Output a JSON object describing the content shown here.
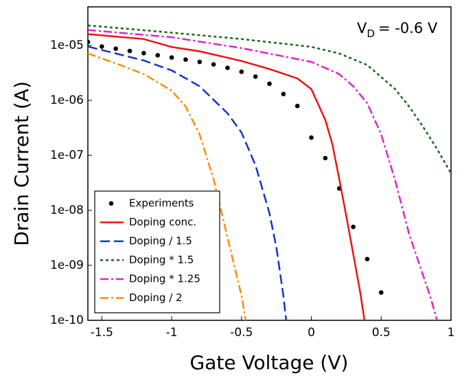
{
  "chart_data": {
    "type": "line",
    "xlabel": "Gate Voltage (V)",
    "ylabel": "Drain Current (A)",
    "annotation": {
      "text": "V",
      "subscript": "D",
      "suffix": "= -0.6 V"
    },
    "xlim": [
      -1.6,
      1.0
    ],
    "xticks": [
      -1.5,
      -1,
      -0.5,
      0,
      0.5,
      1
    ],
    "ylim": [
      1e-10,
      5e-05
    ],
    "yscale": "log",
    "yticks": [
      1e-10,
      {
        "value": 1e-09,
        "label": "1e-09"
      },
      {
        "value": 1e-08,
        "label": "1e-08"
      },
      {
        "value": 1e-07,
        "label": "1e-07"
      },
      {
        "value": 1e-06,
        "label": "1e-06"
      },
      {
        "value": 1e-05,
        "label": "1e-05"
      }
    ],
    "legend": "lower left",
    "series": [
      {
        "name": "Experiments",
        "color": "#000000",
        "style": "dots",
        "x": [
          -1.6,
          -1.5,
          -1.4,
          -1.3,
          -1.2,
          -1.1,
          -1.0,
          -0.9,
          -0.8,
          -0.7,
          -0.6,
          -0.5,
          -0.4,
          -0.3,
          -0.2,
          -0.1,
          0,
          0.1,
          0.2,
          0.3,
          0.4,
          0.5
        ],
        "values": [
          1.15e-05,
          9.5e-06,
          8.7e-06,
          7.9e-06,
          7.2e-06,
          6.6e-06,
          6e-06,
          5.5e-06,
          5e-06,
          4.5e-06,
          3.9e-06,
          3.3e-06,
          2.7e-06,
          2e-06,
          1.3e-06,
          7.9e-07,
          2.1e-07,
          8.9e-08,
          2.5e-08,
          5e-09,
          1.3e-09,
          3.2e-10
        ]
      },
      {
        "name": "Doping conc.",
        "color": "#ee1111",
        "style": "solid",
        "x": [
          -1.6,
          -1.2,
          -1.0,
          -0.8,
          -0.5,
          -0.3,
          -0.1,
          0,
          0.1,
          0.15,
          0.2,
          0.25,
          0.3,
          0.35,
          0.38
        ],
        "values": [
          1.6e-05,
          1.3e-05,
          9.3e-06,
          7.8e-06,
          5.2e-06,
          3.7e-06,
          2.5e-06,
          1.6e-06,
          4.4e-07,
          1.6e-07,
          3.7e-08,
          7.9e-09,
          1.6e-09,
          3.2e-10,
          1e-10
        ]
      },
      {
        "name": "Doping / 1.5",
        "color": "#1133cc",
        "style": "dashed",
        "x": [
          -1.6,
          -1.2,
          -1.0,
          -0.8,
          -0.6,
          -0.5,
          -0.4,
          -0.3,
          -0.25,
          -0.2,
          -0.18
        ],
        "values": [
          9.5e-06,
          5.3e-06,
          3.5e-06,
          1.8e-06,
          5.8e-07,
          2.6e-07,
          6.6e-08,
          8.9e-09,
          2.1e-09,
          2.8e-10,
          1e-10
        ]
      },
      {
        "name": "Doping * 1.5",
        "color": "#116611",
        "style": "dotted",
        "x": [
          -1.6,
          -1.0,
          -0.5,
          0,
          0.2,
          0.4,
          0.6,
          0.7,
          0.8,
          0.9,
          1.0
        ],
        "values": [
          2.3e-05,
          1.7e-05,
          1.3e-05,
          9.4e-06,
          7.1e-06,
          4.4e-06,
          1.6e-06,
          7.7e-07,
          3.3e-07,
          1.3e-07,
          4.7e-08
        ]
      },
      {
        "name": "Doping * 1.25",
        "color": "#e020d0",
        "style": "dashdot",
        "x": [
          -1.6,
          -1.0,
          -0.5,
          0,
          0.2,
          0.3,
          0.4,
          0.5,
          0.6,
          0.7,
          0.8,
          0.85,
          0.9
        ],
        "values": [
          1.9e-05,
          1.4e-05,
          8.9e-06,
          5e-06,
          3e-06,
          1.8e-06,
          8.9e-07,
          2.4e-07,
          3.5e-08,
          3.7e-09,
          6.6e-10,
          2.8e-10,
          1e-10
        ]
      },
      {
        "name": "Doping / 2",
        "color": "#ff8c00",
        "style": "dashdot",
        "x": [
          -1.6,
          -1.4,
          -1.2,
          -1.0,
          -0.9,
          -0.8,
          -0.7,
          -0.6,
          -0.5,
          -0.47
        ],
        "values": [
          7.1e-06,
          4.7e-06,
          3e-06,
          1.5e-06,
          7.7e-07,
          2.4e-07,
          3.7e-08,
          3.2e-09,
          2.8e-10,
          1e-10
        ]
      }
    ]
  }
}
